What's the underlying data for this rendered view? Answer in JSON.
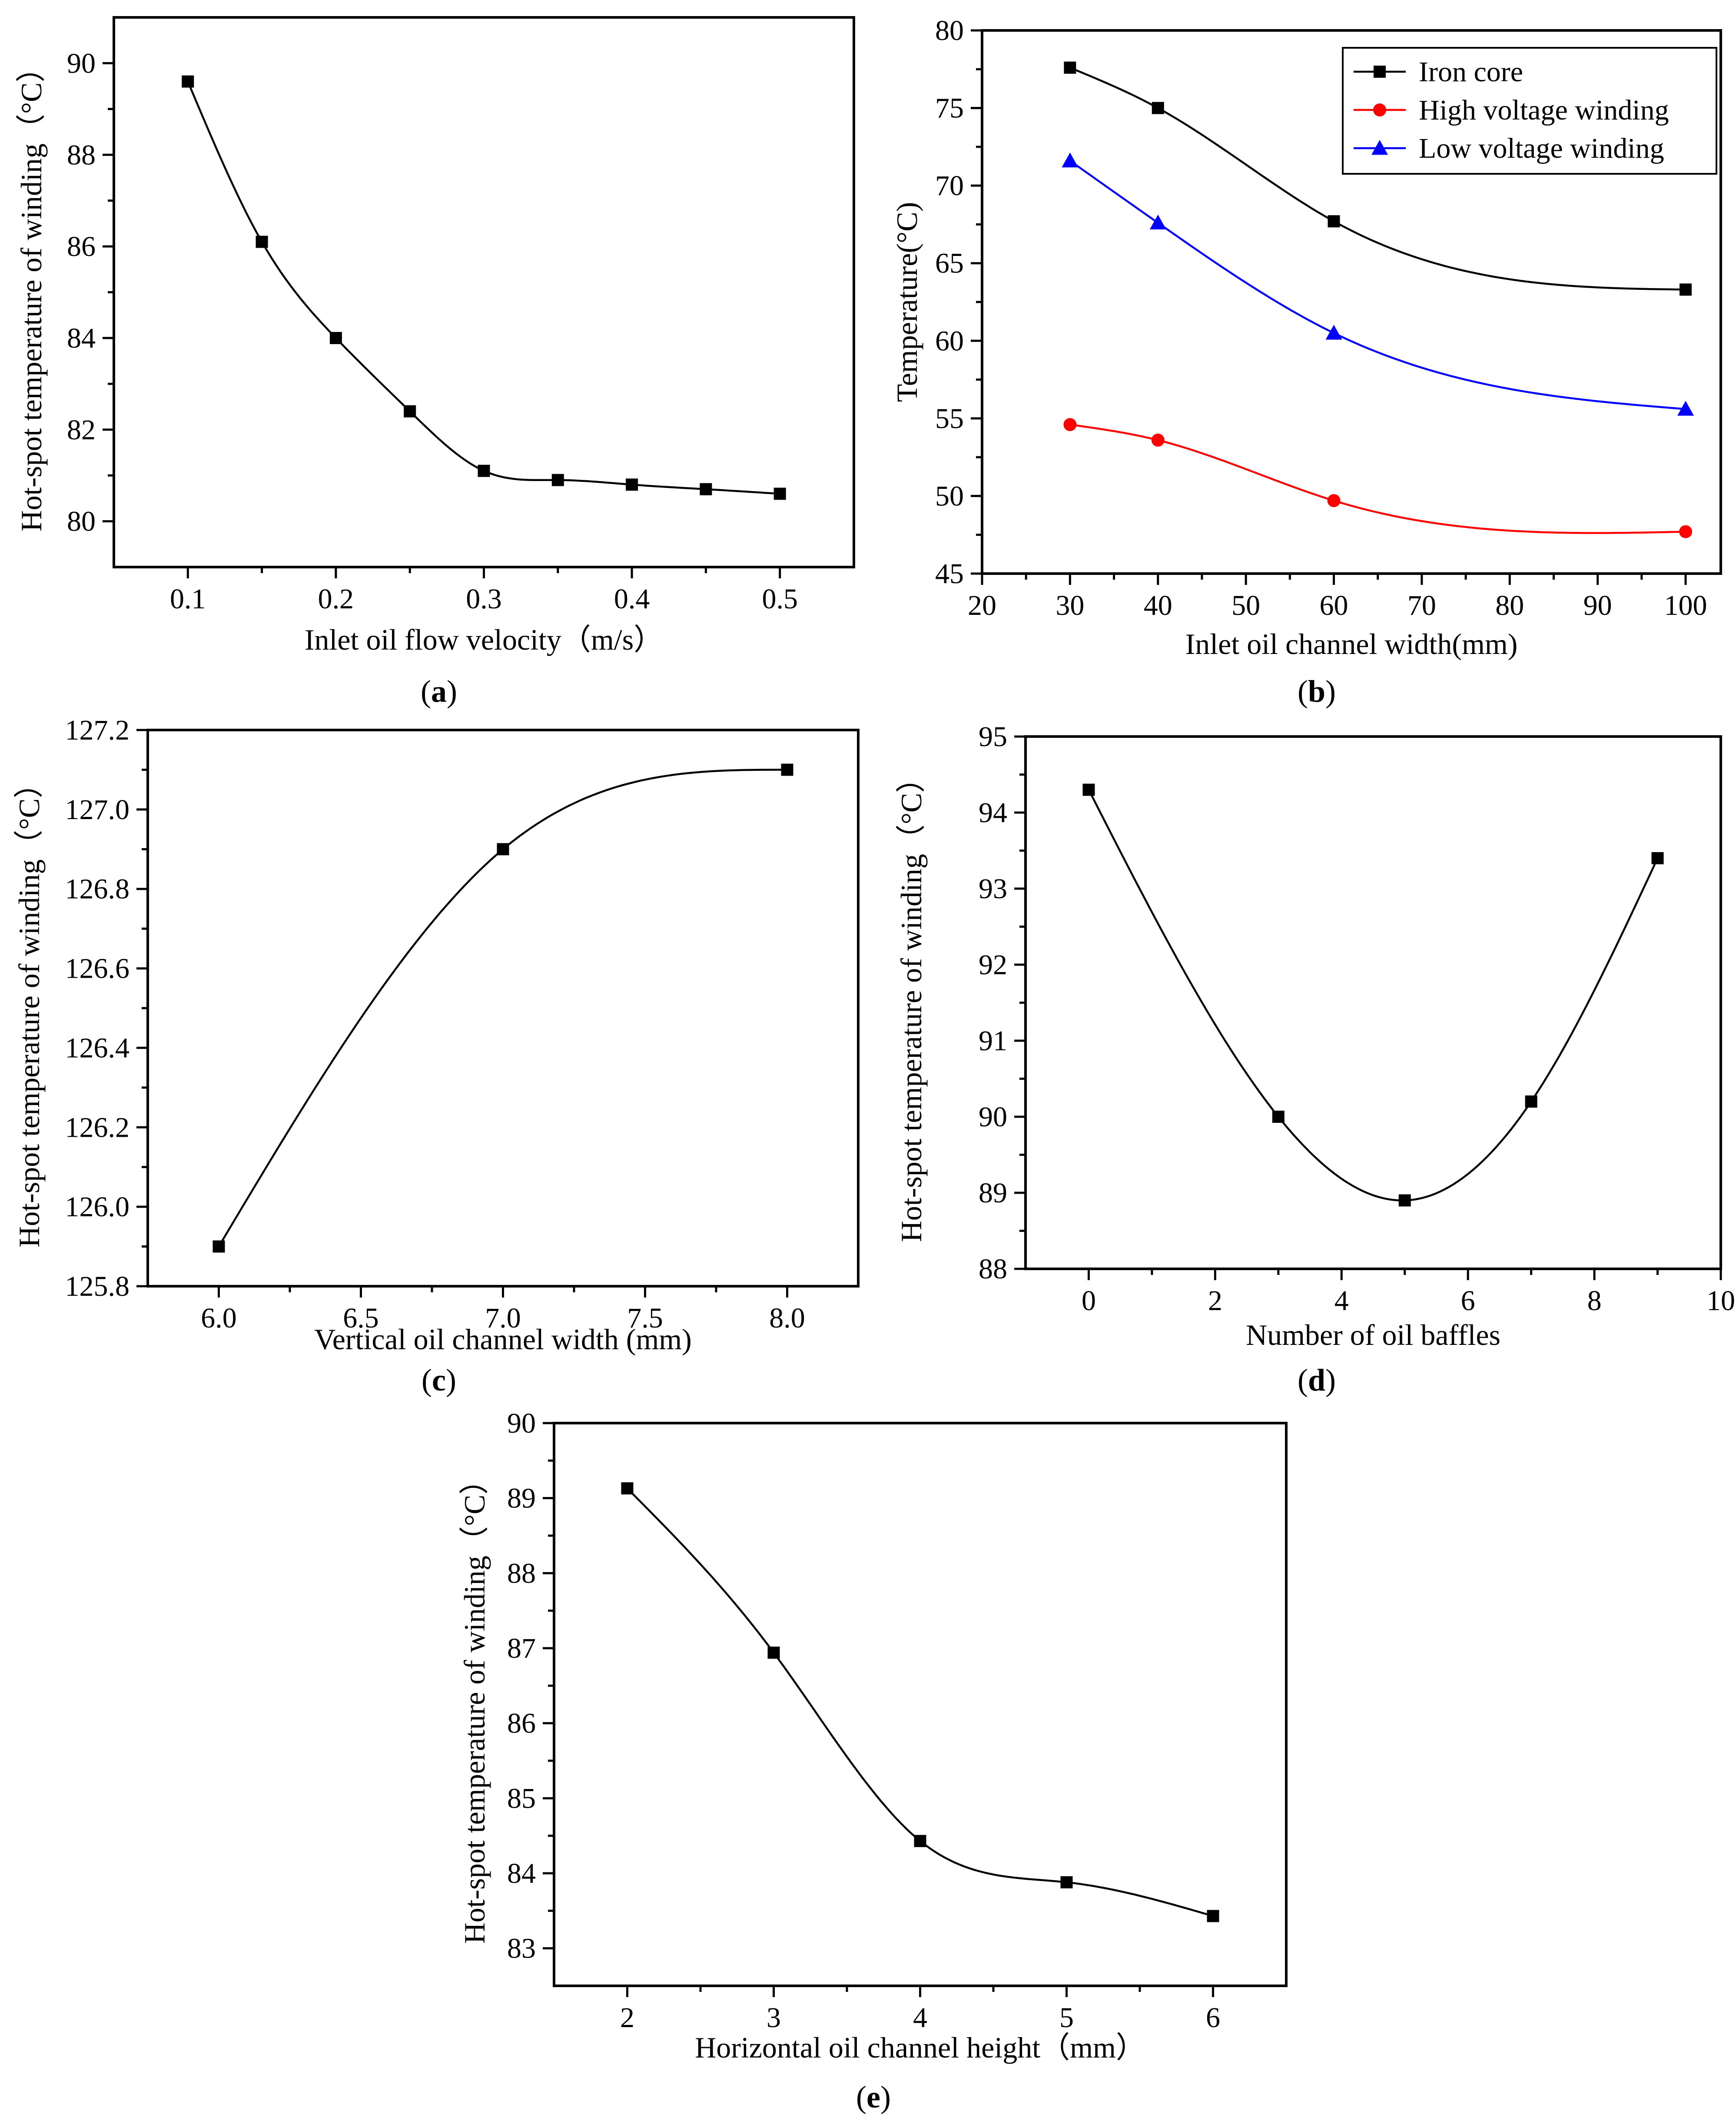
{
  "chart_data": [
    {
      "id": "a",
      "type": "line",
      "panel_label": "a",
      "xlabel": "Inlet oil flow velocity（m/s）",
      "ylabel": "Hot-spot temperature of winding（°C）",
      "xlim": [
        0.05,
        0.55
      ],
      "ylim": [
        79,
        91
      ],
      "xticks": [
        "0.1",
        "0.2",
        "0.3",
        "0.4",
        "0.5"
      ],
      "yticks": [
        "80",
        "82",
        "84",
        "86",
        "88",
        "90"
      ],
      "series": [
        {
          "name": "Hot-spot temperature",
          "color": "#000000",
          "marker": "square",
          "x": [
            0.1,
            0.15,
            0.2,
            0.25,
            0.3,
            0.35,
            0.4,
            0.45,
            0.5
          ],
          "y": [
            89.6,
            86.1,
            84.0,
            82.4,
            81.1,
            80.9,
            80.8,
            80.7,
            80.6
          ]
        }
      ]
    },
    {
      "id": "b",
      "type": "line",
      "panel_label": "b",
      "xlabel": "Inlet oil channel width(mm)",
      "ylabel": "Temperature(°C)",
      "xlim": [
        20,
        104
      ],
      "ylim": [
        45,
        80
      ],
      "xticks": [
        "20",
        "30",
        "40",
        "50",
        "60",
        "70",
        "80",
        "90",
        "100"
      ],
      "yticks": [
        "45",
        "50",
        "55",
        "60",
        "65",
        "70",
        "75",
        "80"
      ],
      "legend_position": "top-right",
      "series": [
        {
          "name": "Iron core",
          "color": "#000000",
          "marker": "square",
          "x": [
            30,
            40,
            60,
            100
          ],
          "y": [
            77.6,
            75.0,
            67.7,
            63.3
          ]
        },
        {
          "name": "High voltage winding",
          "color": "#ff0000",
          "marker": "circle",
          "x": [
            30,
            40,
            60,
            100
          ],
          "y": [
            54.6,
            53.6,
            49.7,
            47.7
          ]
        },
        {
          "name": "Low voltage winding",
          "color": "#0000ff",
          "marker": "triangle",
          "x": [
            30,
            40,
            60,
            100
          ],
          "y": [
            71.6,
            67.6,
            60.5,
            55.6
          ]
        }
      ]
    },
    {
      "id": "c",
      "type": "line",
      "panel_label": "c",
      "xlabel": "Vertical oil channel width (mm)",
      "ylabel": "Hot-spot temperature of winding（°C）",
      "xlim": [
        5.75,
        8.25
      ],
      "ylim": [
        125.8,
        127.2
      ],
      "xticks": [
        "6.0",
        "6.5",
        "7.0",
        "7.5",
        "8.0"
      ],
      "yticks": [
        "125.8",
        "126.0",
        "126.2",
        "126.4",
        "126.6",
        "126.8",
        "127.0",
        "127.2"
      ],
      "series": [
        {
          "name": "Hot-spot temperature",
          "color": "#000000",
          "marker": "square",
          "x": [
            6.0,
            7.0,
            8.0
          ],
          "y": [
            125.9,
            126.9,
            127.1
          ]
        }
      ]
    },
    {
      "id": "d",
      "type": "line",
      "panel_label": "d",
      "xlabel": "Number of oil baffles",
      "ylabel": "Hot-spot temperature of winding（°C）",
      "xlim": [
        -1,
        10
      ],
      "ylim": [
        88,
        95
      ],
      "xticks": [
        "0",
        "2",
        "4",
        "6",
        "8",
        "10"
      ],
      "yticks": [
        "88",
        "89",
        "90",
        "91",
        "92",
        "93",
        "94",
        "95"
      ],
      "series": [
        {
          "name": "Hot-spot temperature",
          "color": "#000000",
          "marker": "square",
          "x": [
            0,
            3,
            5,
            7,
            9
          ],
          "y": [
            94.3,
            90.0,
            88.9,
            90.2,
            93.4
          ]
        }
      ]
    },
    {
      "id": "e",
      "type": "line",
      "panel_label": "e",
      "xlabel": "Horizontal oil channel height（mm）",
      "ylabel": "Hot-spot temperature of winding（°C）",
      "xlim": [
        1.5,
        6.5
      ],
      "ylim": [
        82.5,
        90
      ],
      "xticks": [
        "2",
        "3",
        "4",
        "5",
        "6"
      ],
      "yticks": [
        "83",
        "84",
        "85",
        "86",
        "87",
        "88",
        "89",
        "90"
      ],
      "series": [
        {
          "name": "Hot-spot temperature",
          "color": "#000000",
          "marker": "square",
          "x": [
            2,
            3,
            4,
            5,
            6
          ],
          "y": [
            89.13,
            86.94,
            84.43,
            83.88,
            83.43
          ]
        }
      ]
    }
  ]
}
